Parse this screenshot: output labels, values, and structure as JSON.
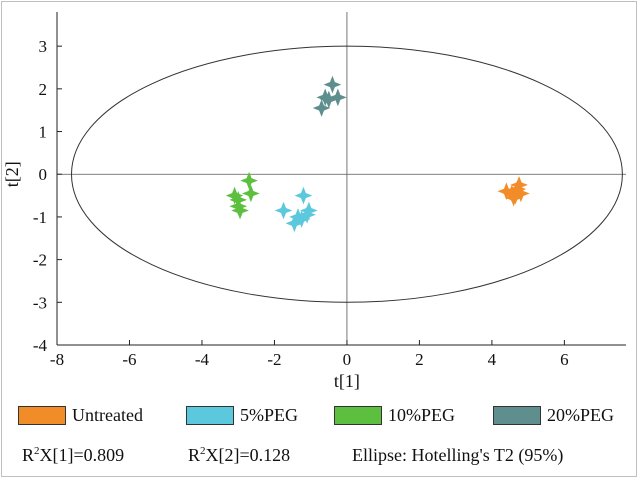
{
  "chart_data": {
    "type": "scatter",
    "title": "",
    "xlabel": "t[1]",
    "ylabel": "t[2]",
    "xlim": [
      -8,
      7.7
    ],
    "ylim": [
      -4,
      3.8
    ],
    "xticks": [
      -8,
      -6,
      -4,
      -2,
      0,
      2,
      4,
      6
    ],
    "yticks": [
      -4,
      -3,
      -2,
      -1,
      0,
      1,
      2,
      3
    ],
    "grid": false,
    "ellipse": {
      "label": "Hotelling's T2 (95%)",
      "center": [
        0,
        0
      ],
      "semi_x": 7.6,
      "semi_y": 3.0
    },
    "series": [
      {
        "name": "Untreated",
        "color": "#F28C28",
        "points": [
          [
            4.4,
            -0.4
          ],
          [
            4.55,
            -0.45
          ],
          [
            4.7,
            -0.35
          ],
          [
            4.75,
            -0.25
          ],
          [
            4.6,
            -0.55
          ],
          [
            4.8,
            -0.45
          ],
          [
            4.65,
            -0.5
          ]
        ]
      },
      {
        "name": "5%PEG",
        "color": "#5BC8DD",
        "points": [
          [
            -1.2,
            -0.5
          ],
          [
            -1.75,
            -0.85
          ],
          [
            -1.45,
            -1.15
          ],
          [
            -1.25,
            -1.05
          ],
          [
            -1.05,
            -0.85
          ],
          [
            -1.35,
            -1.0
          ],
          [
            -1.1,
            -0.95
          ]
        ]
      },
      {
        "name": "10%PEG",
        "color": "#5CBF3E",
        "points": [
          [
            -2.7,
            -0.15
          ],
          [
            -3.1,
            -0.5
          ],
          [
            -2.65,
            -0.45
          ],
          [
            -3.0,
            -0.6
          ],
          [
            -2.95,
            -0.85
          ],
          [
            -3.0,
            -0.75
          ]
        ]
      },
      {
        "name": "20%PEG",
        "color": "#5E8E8E",
        "points": [
          [
            -0.4,
            2.1
          ],
          [
            -0.6,
            1.8
          ],
          [
            -0.25,
            1.8
          ],
          [
            -0.7,
            1.55
          ],
          [
            -0.5,
            1.75
          ]
        ]
      }
    ]
  },
  "legend": {
    "items": [
      {
        "label": "Untreated",
        "color": "#F28C28"
      },
      {
        "label": "5%PEG",
        "color": "#5BC8DD"
      },
      {
        "label": "10%PEG",
        "color": "#5CBF3E"
      },
      {
        "label": "20%PEG",
        "color": "#5E8E8E"
      }
    ]
  },
  "stats": {
    "r2x1_prefix": "R",
    "r2x1_sup": "2",
    "r2x1_suffix": "X[1]=0.809",
    "r2x2_prefix": "R",
    "r2x2_sup": "2",
    "r2x2_suffix": "X[2]=0.128",
    "ellipse_text": "Ellipse: Hotelling's T2 (95%)"
  }
}
